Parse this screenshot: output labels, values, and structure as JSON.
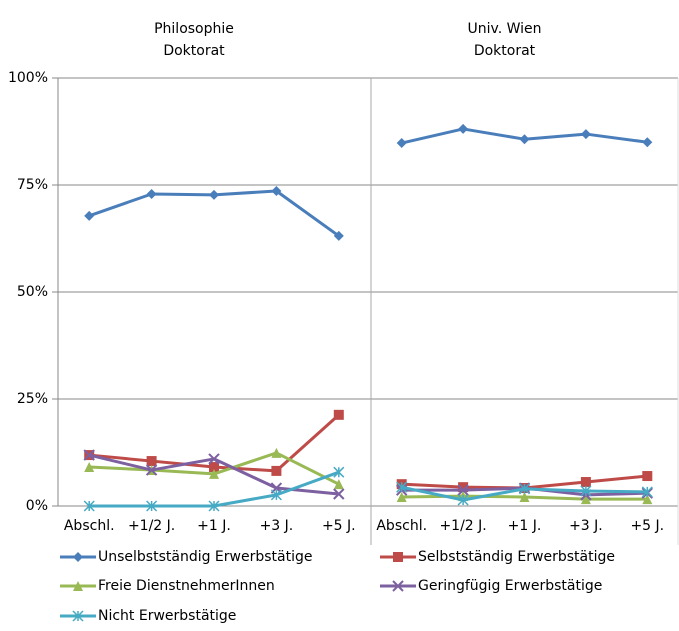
{
  "chart_data": [
    {
      "type": "line",
      "title": [
        "Philosophie",
        "Doktorat"
      ],
      "categories": [
        "Abschl.",
        "+1/2 J.",
        "+1 J.",
        "+3 J.",
        "+5 J."
      ],
      "ylim": [
        0,
        100
      ],
      "yticks": [
        {
          "value": 0,
          "label": "0%"
        },
        {
          "value": 25,
          "label": "25%"
        },
        {
          "value": 50,
          "label": "50%"
        },
        {
          "value": 75,
          "label": "75%"
        },
        {
          "value": 100,
          "label": "100%"
        }
      ],
      "grid": true,
      "series": [
        {
          "name": "Unselbstständig Erwerbstätige",
          "color": "#4a7ebb",
          "marker": "diamond",
          "values": [
            67.8,
            72.9,
            72.7,
            73.6,
            63.1
          ]
        },
        {
          "name": "Selbstständig Erwerbstätige",
          "color": "#be4b48",
          "marker": "square",
          "values": [
            11.9,
            10.5,
            9.1,
            8.2,
            21.3
          ]
        },
        {
          "name": "Freie DienstnehmerInnen",
          "color": "#98b954",
          "marker": "triangle",
          "values": [
            9.1,
            8.4,
            7.5,
            12.4,
            5.1
          ]
        },
        {
          "name": "Geringfügig Erwerbstätige",
          "color": "#7d60a0",
          "marker": "x",
          "values": [
            11.9,
            8.4,
            11.0,
            4.2,
            2.8
          ]
        },
        {
          "name": "Nicht Erwerbstätige",
          "color": "#46aac5",
          "marker": "star",
          "values": [
            0,
            0,
            0,
            2.6,
            7.9
          ]
        }
      ]
    },
    {
      "type": "line",
      "title": [
        "Univ. Wien",
        "Doktorat"
      ],
      "categories": [
        "Abschl.",
        "+1/2 J.",
        "+1 J.",
        "+3 J.",
        "+5 J."
      ],
      "ylim": [
        0,
        100
      ],
      "series": [
        {
          "color": "#4a7ebb",
          "marker": "diamond",
          "values": [
            84.8,
            88.1,
            85.7,
            86.9,
            85.0
          ]
        },
        {
          "color": "#be4b48",
          "marker": "square",
          "values": [
            5.1,
            4.4,
            4.2,
            5.6,
            7.0
          ]
        },
        {
          "color": "#98b954",
          "marker": "triangle",
          "values": [
            2.1,
            2.3,
            2.1,
            1.6,
            1.6
          ]
        },
        {
          "color": "#7d60a0",
          "marker": "x",
          "values": [
            3.7,
            3.7,
            4.2,
            2.6,
            3.0
          ]
        },
        {
          "color": "#46aac5",
          "marker": "star",
          "values": [
            4.4,
            1.4,
            4.0,
            3.5,
            3.3
          ]
        }
      ]
    }
  ]
}
